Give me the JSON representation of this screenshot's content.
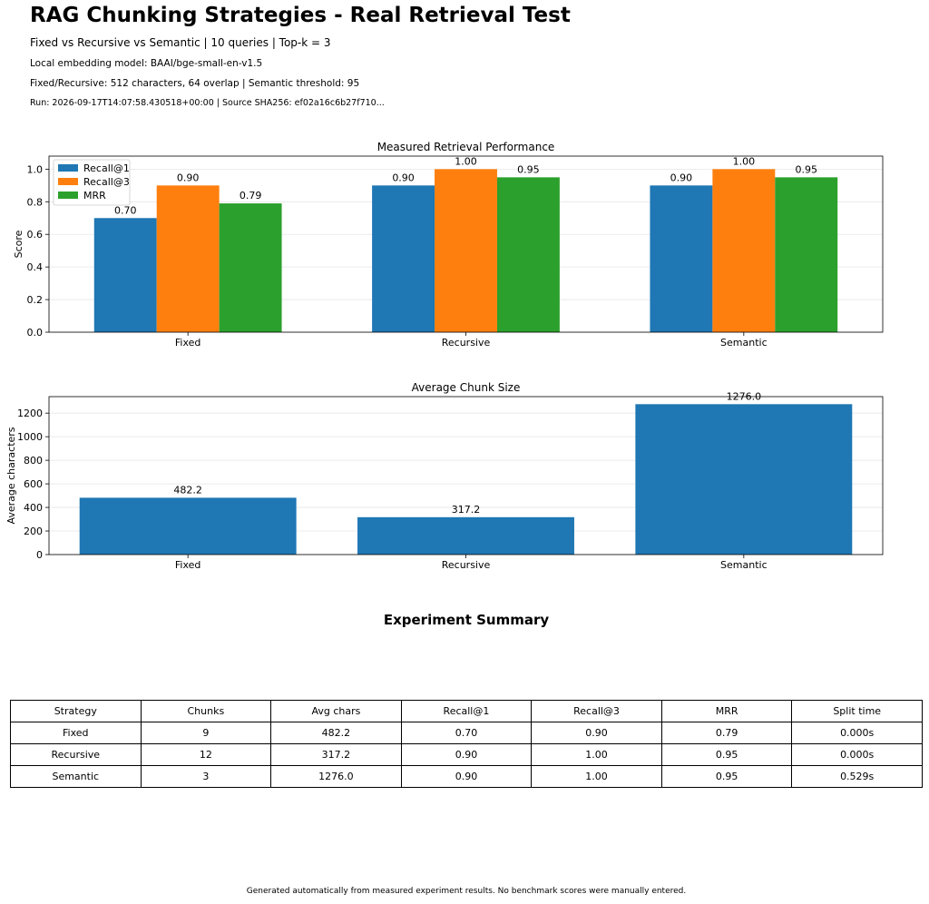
{
  "header": {
    "title": "RAG Chunking Strategies - Real Retrieval Test",
    "subtitle": "Fixed vs Recursive vs Semantic | 10 queries | Top-k = 3",
    "embedding": "Local embedding model: BAAI/bge-small-en-v1.5",
    "config": "Fixed/Recursive: 512 characters, 64 overlap | Semantic threshold: 95",
    "run": "Run: 2026-09-17T14:07:58.430518+00:00 | Source SHA256: ef02a16c6b27f710..."
  },
  "chart_data": [
    {
      "type": "bar",
      "title": "Measured Retrieval Performance",
      "xlabel": "",
      "ylabel": "Score",
      "categories": [
        "Fixed",
        "Recursive",
        "Semantic"
      ],
      "series": [
        {
          "name": "Recall@1",
          "values": [
            0.7,
            0.9,
            0.9
          ],
          "labels": [
            "0.70",
            "0.90",
            "0.90"
          ],
          "color": "#1f77b4"
        },
        {
          "name": "Recall@3",
          "values": [
            0.9,
            1.0,
            1.0
          ],
          "labels": [
            "0.90",
            "1.00",
            "1.00"
          ],
          "color": "#ff7f0e"
        },
        {
          "name": "MRR",
          "values": [
            0.79,
            0.95,
            0.95
          ],
          "labels": [
            "0.79",
            "0.95",
            "0.95"
          ],
          "color": "#2ca02c"
        }
      ],
      "ylim": [
        0,
        1.08
      ],
      "yticks": [
        "0.0",
        "0.2",
        "0.4",
        "0.6",
        "0.8",
        "1.0"
      ],
      "grid": true,
      "legend": "top-left"
    },
    {
      "type": "bar",
      "title": "Average Chunk Size",
      "xlabel": "",
      "ylabel": "Average characters",
      "categories": [
        "Fixed",
        "Recursive",
        "Semantic"
      ],
      "values": [
        482.2,
        317.2,
        1276.0
      ],
      "labels": [
        "482.2",
        "317.2",
        "1276.0"
      ],
      "color": "#1f77b4",
      "ylim": [
        0,
        1340
      ],
      "yticks": [
        "0",
        "200",
        "400",
        "600",
        "800",
        "1000",
        "1200"
      ],
      "grid": true
    }
  ],
  "summary": {
    "title": "Experiment Summary",
    "columns": [
      "Strategy",
      "Chunks",
      "Avg chars",
      "Recall@1",
      "Recall@3",
      "MRR",
      "Split time"
    ],
    "rows": [
      [
        "Fixed",
        "9",
        "482.2",
        "0.70",
        "0.90",
        "0.79",
        "0.000s"
      ],
      [
        "Recursive",
        "12",
        "317.2",
        "0.90",
        "1.00",
        "0.95",
        "0.000s"
      ],
      [
        "Semantic",
        "3",
        "1276.0",
        "0.90",
        "1.00",
        "0.95",
        "0.529s"
      ]
    ]
  },
  "footer": "Generated automatically from measured experiment results. No benchmark scores were manually entered."
}
